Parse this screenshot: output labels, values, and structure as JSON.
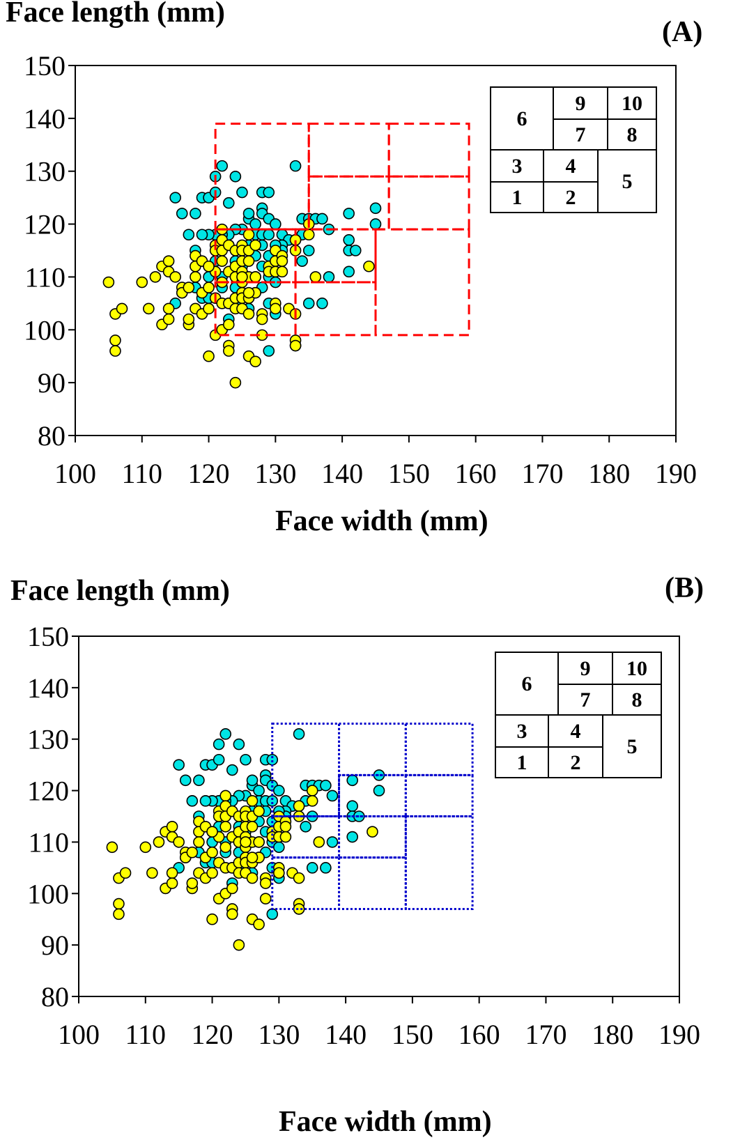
{
  "figure": {
    "panels": [
      {
        "letter": "(A)",
        "ylabel": "Face length (mm)",
        "xlabel": "Face width (mm)"
      },
      {
        "letter": "(B)",
        "ylabel": "Face length (mm)",
        "xlabel": "Face width (mm)"
      }
    ]
  },
  "chart_data": [
    {
      "type": "scatter",
      "panel": "(A)",
      "title": "",
      "xlabel": "Face width (mm)",
      "ylabel": "Face length (mm)",
      "xlim": [
        100,
        190
      ],
      "ylim": [
        80,
        150
      ],
      "xticks": [
        100,
        110,
        120,
        130,
        140,
        150,
        160,
        170,
        180,
        190
      ],
      "yticks": [
        80,
        90,
        100,
        110,
        120,
        130,
        140,
        150
      ],
      "grid": false,
      "marker_colors": {
        "group1": "#00e5e5",
        "group2": "#ffff00"
      },
      "sizing_grid": {
        "style": "dashed",
        "color": "#ff0000",
        "cells": [
          {
            "x": [
              121,
              133
            ],
            "y": [
              99,
              109
            ]
          },
          {
            "x": [
              133,
              145
            ],
            "y": [
              99,
              109
            ]
          },
          {
            "x": [
              121,
              133
            ],
            "y": [
              109,
              119
            ]
          },
          {
            "x": [
              133,
              145
            ],
            "y": [
              109,
              119
            ]
          },
          {
            "x": [
              145,
              159
            ],
            "y": [
              99,
              119
            ]
          },
          {
            "x": [
              121,
              135
            ],
            "y": [
              119,
              139
            ]
          },
          {
            "x": [
              135,
              147
            ],
            "y": [
              119,
              129
            ]
          },
          {
            "x": [
              147,
              159
            ],
            "y": [
              119,
              129
            ]
          },
          {
            "x": [
              135,
              147
            ],
            "y": [
              129,
              139
            ]
          },
          {
            "x": [
              147,
              159
            ],
            "y": [
              129,
              139
            ]
          }
        ]
      },
      "legend_key": {
        "placement": "top-right",
        "cells": [
          {
            "label": "1"
          },
          {
            "label": "2"
          },
          {
            "label": "3"
          },
          {
            "label": "4"
          },
          {
            "label": "5"
          },
          {
            "label": "6"
          },
          {
            "label": "7"
          },
          {
            "label": "8"
          },
          {
            "label": "9"
          },
          {
            "label": "10"
          }
        ]
      }
    },
    {
      "type": "scatter",
      "panel": "(B)",
      "title": "",
      "xlabel": "Face width (mm)",
      "ylabel": "Face length (mm)",
      "xlim": [
        100,
        190
      ],
      "ylim": [
        80,
        150
      ],
      "xticks": [
        100,
        110,
        120,
        130,
        140,
        150,
        160,
        170,
        180,
        190
      ],
      "yticks": [
        80,
        90,
        100,
        110,
        120,
        130,
        140,
        150
      ],
      "grid": false,
      "marker_colors": {
        "group1": "#00e5e5",
        "group2": "#ffff00"
      },
      "sizing_grid": {
        "style": "dotted",
        "color": "#0000cc",
        "cells": [
          {
            "x": [
              129,
              139
            ],
            "y": [
              97,
              107
            ]
          },
          {
            "x": [
              139,
              149
            ],
            "y": [
              97,
              107
            ]
          },
          {
            "x": [
              129,
              139
            ],
            "y": [
              107,
              115
            ]
          },
          {
            "x": [
              139,
              149
            ],
            "y": [
              107,
              115
            ]
          },
          {
            "x": [
              149,
              159
            ],
            "y": [
              97,
              115
            ]
          },
          {
            "x": [
              129,
              139
            ],
            "y": [
              115,
              133
            ]
          },
          {
            "x": [
              139,
              149
            ],
            "y": [
              115,
              123
            ]
          },
          {
            "x": [
              149,
              159
            ],
            "y": [
              115,
              123
            ]
          },
          {
            "x": [
              139,
              149
            ],
            "y": [
              123,
              133
            ]
          },
          {
            "x": [
              149,
              159
            ],
            "y": [
              123,
              133
            ]
          }
        ]
      },
      "legend_key": {
        "placement": "top-right",
        "cells": [
          {
            "label": "1"
          },
          {
            "label": "2"
          },
          {
            "label": "3"
          },
          {
            "label": "4"
          },
          {
            "label": "5"
          },
          {
            "label": "6"
          },
          {
            "label": "7"
          },
          {
            "label": "8"
          },
          {
            "label": "9"
          },
          {
            "label": "10"
          }
        ]
      }
    }
  ],
  "scatter_points": {
    "group1": [
      [
        115,
        125
      ],
      [
        116,
        122
      ],
      [
        117,
        118
      ],
      [
        118,
        122
      ],
      [
        119,
        125
      ],
      [
        120,
        125
      ],
      [
        121,
        129
      ],
      [
        121,
        126
      ],
      [
        122,
        131
      ],
      [
        123,
        124
      ],
      [
        124,
        129
      ],
      [
        125,
        126
      ],
      [
        126,
        121
      ],
      [
        128,
        126
      ],
      [
        129,
        126
      ],
      [
        128,
        123
      ],
      [
        128,
        122
      ],
      [
        129,
        121
      ],
      [
        130,
        120
      ],
      [
        127,
        120
      ],
      [
        126,
        122
      ],
      [
        125,
        119
      ],
      [
        124,
        119
      ],
      [
        123,
        118
      ],
      [
        122,
        118
      ],
      [
        121,
        118
      ],
      [
        120,
        118
      ],
      [
        119,
        118
      ],
      [
        118,
        115
      ],
      [
        127,
        118
      ],
      [
        128,
        118
      ],
      [
        129,
        118
      ],
      [
        131,
        118
      ],
      [
        132,
        117
      ],
      [
        133,
        131
      ],
      [
        134,
        121
      ],
      [
        135,
        121
      ],
      [
        136,
        121
      ],
      [
        137,
        121
      ],
      [
        138,
        119
      ],
      [
        134,
        118
      ],
      [
        133,
        117
      ],
      [
        135,
        115
      ],
      [
        134,
        113
      ],
      [
        131,
        116
      ],
      [
        131,
        115
      ],
      [
        130,
        116
      ],
      [
        129,
        114
      ],
      [
        128,
        112
      ],
      [
        129,
        110
      ],
      [
        130,
        109
      ],
      [
        128,
        108
      ],
      [
        127,
        107
      ],
      [
        126,
        106
      ],
      [
        124,
        108
      ],
      [
        123,
        105
      ],
      [
        122,
        110
      ],
      [
        121,
        113
      ],
      [
        120,
        110
      ],
      [
        126,
        116
      ],
      [
        125,
        112
      ],
      [
        127,
        114
      ],
      [
        124,
        113
      ],
      [
        123,
        116
      ],
      [
        128,
        116
      ],
      [
        141,
        122
      ],
      [
        141,
        117
      ],
      [
        141,
        115
      ],
      [
        142,
        115
      ],
      [
        141,
        111
      ],
      [
        145,
        123
      ],
      [
        145,
        120
      ],
      [
        138,
        110
      ],
      [
        135,
        105
      ],
      [
        137,
        105
      ],
      [
        130,
        103
      ],
      [
        129,
        105
      ],
      [
        129,
        96
      ],
      [
        133,
        97
      ],
      [
        124,
        105
      ],
      [
        122,
        108
      ],
      [
        123,
        102
      ],
      [
        119,
        106
      ],
      [
        115,
        105
      ],
      [
        116,
        107
      ],
      [
        120,
        106
      ],
      [
        118,
        108
      ],
      [
        125,
        110
      ],
      [
        126,
        104
      ],
      [
        127,
        110
      ]
    ],
    "group2": [
      [
        105,
        109
      ],
      [
        106,
        103
      ],
      [
        106,
        98
      ],
      [
        106,
        96
      ],
      [
        107,
        104
      ],
      [
        110,
        109
      ],
      [
        111,
        104
      ],
      [
        112,
        110
      ],
      [
        113,
        112
      ],
      [
        113,
        101
      ],
      [
        114,
        113
      ],
      [
        114,
        104
      ],
      [
        114,
        102
      ],
      [
        114,
        111
      ],
      [
        115,
        110
      ],
      [
        116,
        108
      ],
      [
        116,
        107
      ],
      [
        117,
        108
      ],
      [
        117,
        101
      ],
      [
        117,
        102
      ],
      [
        118,
        114
      ],
      [
        118,
        112
      ],
      [
        118,
        110
      ],
      [
        118,
        104
      ],
      [
        119,
        107
      ],
      [
        119,
        103
      ],
      [
        120,
        112
      ],
      [
        120,
        108
      ],
      [
        120,
        104
      ],
      [
        120,
        95
      ],
      [
        121,
        116
      ],
      [
        121,
        115
      ],
      [
        121,
        111
      ],
      [
        121,
        106
      ],
      [
        121,
        99
      ],
      [
        122,
        119
      ],
      [
        122,
        117
      ],
      [
        122,
        115
      ],
      [
        122,
        113
      ],
      [
        122,
        109
      ],
      [
        122,
        105
      ],
      [
        122,
        100
      ],
      [
        123,
        116
      ],
      [
        123,
        111
      ],
      [
        123,
        105
      ],
      [
        123,
        101
      ],
      [
        123,
        97
      ],
      [
        123,
        96
      ],
      [
        124,
        115
      ],
      [
        124,
        112
      ],
      [
        124,
        110
      ],
      [
        124,
        106
      ],
      [
        124,
        104
      ],
      [
        124,
        90
      ],
      [
        125,
        116
      ],
      [
        125,
        115
      ],
      [
        125,
        113
      ],
      [
        125,
        111
      ],
      [
        125,
        109
      ],
      [
        125,
        107
      ],
      [
        125,
        106
      ],
      [
        125,
        104
      ],
      [
        126,
        118
      ],
      [
        126,
        115
      ],
      [
        126,
        113
      ],
      [
        126,
        110
      ],
      [
        126,
        106
      ],
      [
        126,
        103
      ],
      [
        126,
        95
      ],
      [
        127,
        94
      ],
      [
        127,
        116
      ],
      [
        127,
        110
      ],
      [
        127,
        107
      ],
      [
        128,
        103
      ],
      [
        128,
        102
      ],
      [
        128,
        99
      ],
      [
        129,
        112
      ],
      [
        129,
        111
      ],
      [
        130,
        115
      ],
      [
        130,
        113
      ],
      [
        130,
        111
      ],
      [
        130,
        105
      ],
      [
        130,
        104
      ],
      [
        131,
        114
      ],
      [
        131,
        113
      ],
      [
        131,
        111
      ],
      [
        132,
        104
      ],
      [
        133,
        117
      ],
      [
        133,
        115
      ],
      [
        133,
        103
      ],
      [
        133,
        98
      ],
      [
        133,
        97
      ],
      [
        135,
        120
      ],
      [
        135,
        118
      ],
      [
        136,
        110
      ],
      [
        144,
        112
      ],
      [
        119,
        113
      ],
      [
        120,
        112
      ],
      [
        126,
        107
      ],
      [
        125,
        110
      ]
    ]
  }
}
